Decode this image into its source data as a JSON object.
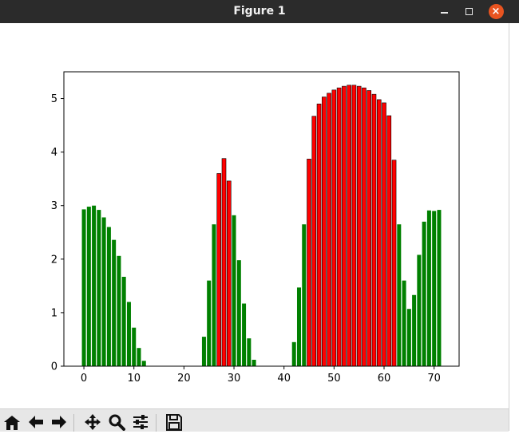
{
  "window": {
    "title": "Figure 1",
    "controls": [
      "minimize",
      "maximize",
      "close"
    ],
    "close_glyph": "×"
  },
  "toolbar": {
    "buttons": [
      {
        "name": "home-icon"
      },
      {
        "name": "back-arrow-icon"
      },
      {
        "name": "forward-arrow-icon"
      },
      {
        "name": "pan-icon"
      },
      {
        "name": "zoom-icon"
      },
      {
        "name": "configure-subplots-icon"
      },
      {
        "name": "save-icon"
      }
    ]
  },
  "chart_data": {
    "type": "bar",
    "title": "",
    "xlabel": "",
    "ylabel": "",
    "xlim": [
      -4,
      75
    ],
    "ylim": [
      0,
      5.5
    ],
    "xticks": [
      0,
      10,
      20,
      30,
      40,
      50,
      60,
      70
    ],
    "yticks": [
      0,
      1,
      2,
      3,
      4,
      5
    ],
    "grid": false,
    "colors": {
      "low": "#008000",
      "high": "#ff0000",
      "edge_high": "#000000"
    },
    "bars": [
      {
        "x": 0,
        "value": 2.93,
        "color": "green"
      },
      {
        "x": 1,
        "value": 2.98,
        "color": "green"
      },
      {
        "x": 2,
        "value": 3.0,
        "color": "green"
      },
      {
        "x": 3,
        "value": 2.92,
        "color": "green"
      },
      {
        "x": 4,
        "value": 2.78,
        "color": "green"
      },
      {
        "x": 5,
        "value": 2.6,
        "color": "green"
      },
      {
        "x": 6,
        "value": 2.36,
        "color": "green"
      },
      {
        "x": 7,
        "value": 2.06,
        "color": "green"
      },
      {
        "x": 8,
        "value": 1.67,
        "color": "green"
      },
      {
        "x": 9,
        "value": 1.2,
        "color": "green"
      },
      {
        "x": 10,
        "value": 0.72,
        "color": "green"
      },
      {
        "x": 11,
        "value": 0.34,
        "color": "green"
      },
      {
        "x": 12,
        "value": 0.1,
        "color": "green"
      },
      {
        "x": 13,
        "value": 0,
        "color": "green"
      },
      {
        "x": 14,
        "value": 0,
        "color": "green"
      },
      {
        "x": 15,
        "value": 0,
        "color": "green"
      },
      {
        "x": 16,
        "value": 0,
        "color": "green"
      },
      {
        "x": 17,
        "value": 0,
        "color": "green"
      },
      {
        "x": 18,
        "value": 0,
        "color": "green"
      },
      {
        "x": 19,
        "value": 0,
        "color": "green"
      },
      {
        "x": 20,
        "value": 0,
        "color": "green"
      },
      {
        "x": 21,
        "value": 0,
        "color": "green"
      },
      {
        "x": 22,
        "value": 0,
        "color": "green"
      },
      {
        "x": 23,
        "value": 0,
        "color": "green"
      },
      {
        "x": 24,
        "value": 0.55,
        "color": "green"
      },
      {
        "x": 25,
        "value": 1.6,
        "color": "green"
      },
      {
        "x": 26,
        "value": 2.65,
        "color": "green"
      },
      {
        "x": 27,
        "value": 3.6,
        "color": "red"
      },
      {
        "x": 28,
        "value": 3.88,
        "color": "red"
      },
      {
        "x": 29,
        "value": 3.46,
        "color": "red"
      },
      {
        "x": 30,
        "value": 2.82,
        "color": "green"
      },
      {
        "x": 31,
        "value": 1.98,
        "color": "green"
      },
      {
        "x": 32,
        "value": 1.17,
        "color": "green"
      },
      {
        "x": 33,
        "value": 0.52,
        "color": "green"
      },
      {
        "x": 34,
        "value": 0.12,
        "color": "green"
      },
      {
        "x": 35,
        "value": 0,
        "color": "green"
      },
      {
        "x": 36,
        "value": 0,
        "color": "green"
      },
      {
        "x": 37,
        "value": 0,
        "color": "green"
      },
      {
        "x": 38,
        "value": 0,
        "color": "green"
      },
      {
        "x": 39,
        "value": 0,
        "color": "green"
      },
      {
        "x": 40,
        "value": 0,
        "color": "green"
      },
      {
        "x": 41,
        "value": 0,
        "color": "green"
      },
      {
        "x": 42,
        "value": 0.45,
        "color": "green"
      },
      {
        "x": 43,
        "value": 1.47,
        "color": "green"
      },
      {
        "x": 44,
        "value": 2.65,
        "color": "green"
      },
      {
        "x": 45,
        "value": 3.87,
        "color": "red"
      },
      {
        "x": 46,
        "value": 4.67,
        "color": "red"
      },
      {
        "x": 47,
        "value": 4.9,
        "color": "red"
      },
      {
        "x": 48,
        "value": 5.03,
        "color": "red"
      },
      {
        "x": 49,
        "value": 5.1,
        "color": "red"
      },
      {
        "x": 50,
        "value": 5.16,
        "color": "red"
      },
      {
        "x": 51,
        "value": 5.2,
        "color": "red"
      },
      {
        "x": 52,
        "value": 5.23,
        "color": "red"
      },
      {
        "x": 53,
        "value": 5.25,
        "color": "red"
      },
      {
        "x": 54,
        "value": 5.25,
        "color": "red"
      },
      {
        "x": 55,
        "value": 5.23,
        "color": "red"
      },
      {
        "x": 56,
        "value": 5.2,
        "color": "red"
      },
      {
        "x": 57,
        "value": 5.15,
        "color": "red"
      },
      {
        "x": 58,
        "value": 5.08,
        "color": "red"
      },
      {
        "x": 59,
        "value": 4.98,
        "color": "red"
      },
      {
        "x": 60,
        "value": 4.92,
        "color": "red"
      },
      {
        "x": 61,
        "value": 4.68,
        "color": "red"
      },
      {
        "x": 62,
        "value": 3.85,
        "color": "red"
      },
      {
        "x": 63,
        "value": 2.65,
        "color": "green"
      },
      {
        "x": 64,
        "value": 1.6,
        "color": "green"
      },
      {
        "x": 65,
        "value": 1.07,
        "color": "green"
      },
      {
        "x": 66,
        "value": 1.33,
        "color": "green"
      },
      {
        "x": 67,
        "value": 2.08,
        "color": "green"
      },
      {
        "x": 68,
        "value": 2.7,
        "color": "green"
      },
      {
        "x": 69,
        "value": 2.91,
        "color": "green"
      },
      {
        "x": 70,
        "value": 2.9,
        "color": "green"
      },
      {
        "x": 71,
        "value": 2.92,
        "color": "green"
      }
    ]
  }
}
